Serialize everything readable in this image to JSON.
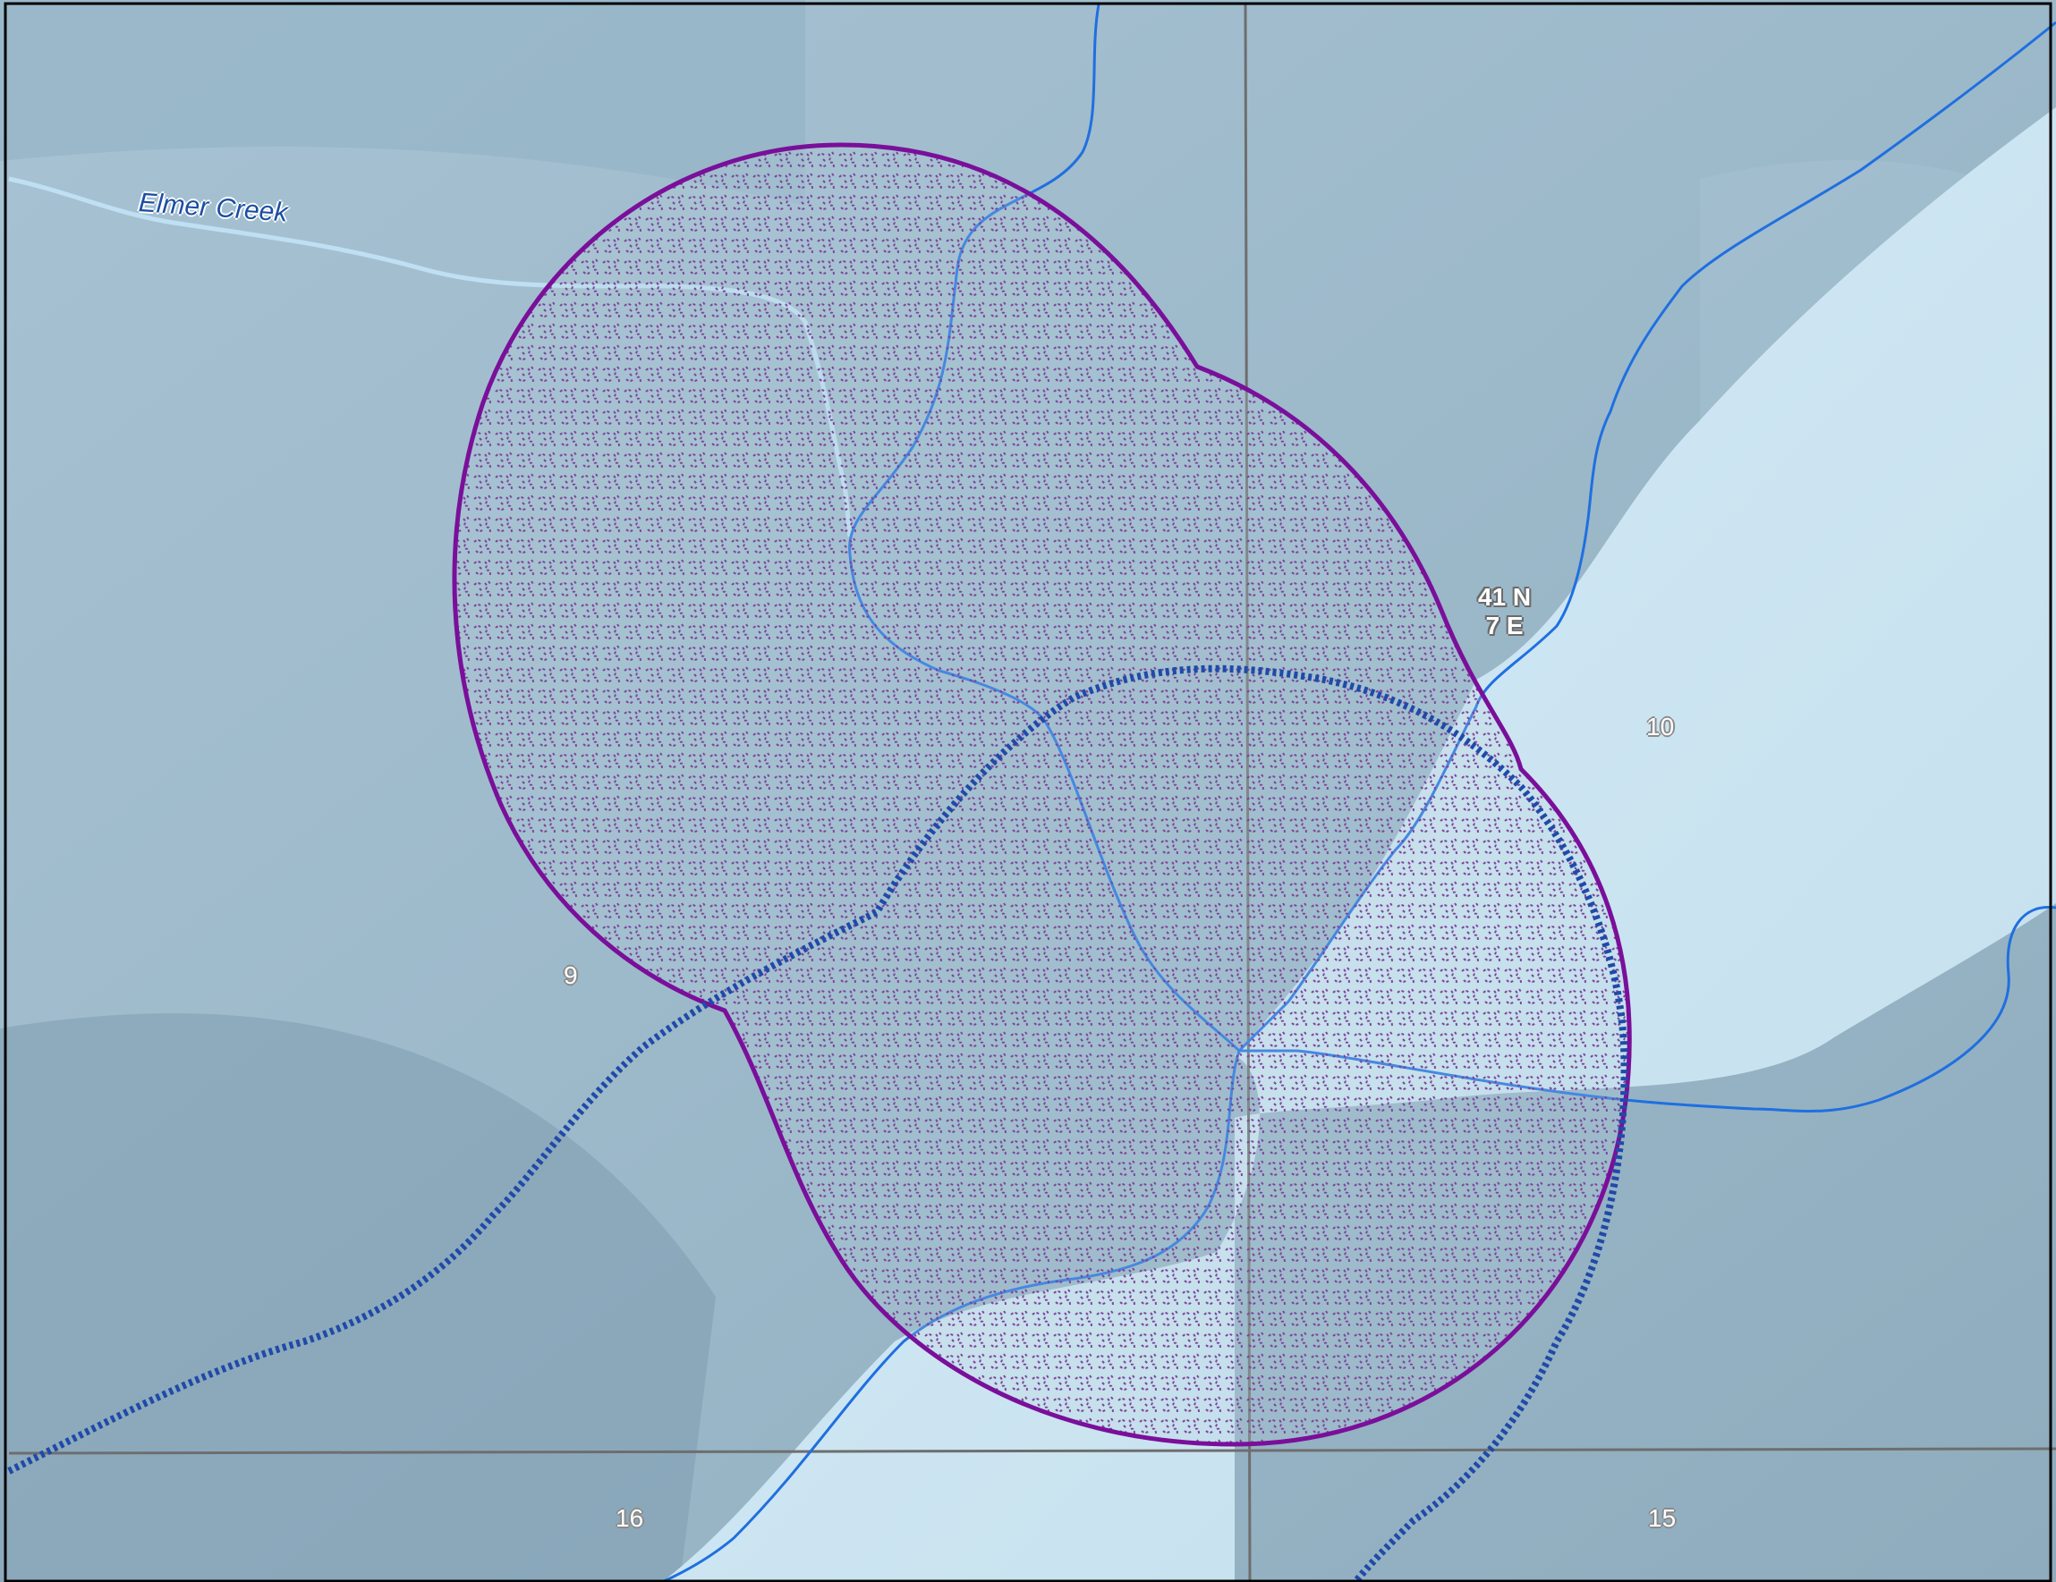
{
  "map": {
    "stream_name": "Elmer Creek",
    "township": {
      "line1": "41 N",
      "line2": "7 E"
    },
    "sections": [
      {
        "id": "sec-9",
        "label": "9"
      },
      {
        "id": "sec-10",
        "label": "10"
      },
      {
        "id": "sec-15",
        "label": "15"
      },
      {
        "id": "sec-16",
        "label": "16"
      }
    ],
    "colors": {
      "terrain_dark": "#86a4b6",
      "terrain_light": "#cfe6f2",
      "stream_major": "#b9dcee",
      "stream_minor": "#1f6fe0",
      "trail_dotted": "#1f4aa8",
      "buffer_outline": "#7a0f9a",
      "buffer_hatch": "#6a1585",
      "section_lines": "#6e6e6e"
    },
    "icons": [
      "stream-line",
      "trail-line",
      "section-line",
      "hatched-buffer-area"
    ]
  }
}
